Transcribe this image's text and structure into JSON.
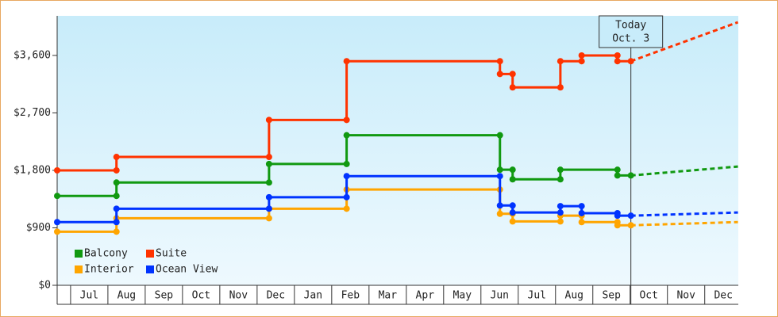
{
  "chart_data": {
    "type": "step",
    "xlim": [
      -0.36,
      17.9
    ],
    "ylim": [
      0,
      4220
    ],
    "xticks": [
      {
        "value": 0.5,
        "label": "Jul"
      },
      {
        "value": 1.5,
        "label": "Aug"
      },
      {
        "value": 2.5,
        "label": "Sep"
      },
      {
        "value": 3.5,
        "label": "Oct"
      },
      {
        "value": 4.5,
        "label": "Nov"
      },
      {
        "value": 5.5,
        "label": "Dec"
      },
      {
        "value": 6.5,
        "label": "Jan"
      },
      {
        "value": 7.5,
        "label": "Feb"
      },
      {
        "value": 8.5,
        "label": "Mar"
      },
      {
        "value": 9.5,
        "label": "Apr"
      },
      {
        "value": 10.5,
        "label": "May"
      },
      {
        "value": 11.5,
        "label": "Jun"
      },
      {
        "value": 12.5,
        "label": "Jul"
      },
      {
        "value": 13.5,
        "label": "Aug"
      },
      {
        "value": 14.5,
        "label": "Sep"
      },
      {
        "value": 15.5,
        "label": "Oct"
      },
      {
        "value": 16.5,
        "label": "Nov"
      },
      {
        "value": 17.5,
        "label": "Dec"
      }
    ],
    "yticks": [
      {
        "value": 0,
        "label": "$0"
      },
      {
        "value": 900,
        "label": "$900"
      },
      {
        "value": 1800,
        "label": "$1,800"
      },
      {
        "value": 2700,
        "label": "$2,700"
      },
      {
        "value": 3600,
        "label": "$3,600"
      }
    ],
    "annotation": {
      "lines": [
        "Today",
        "Oct. 3"
      ],
      "x": 15.02
    },
    "forecast_x": 17.89,
    "legend": "lower-left",
    "series": [
      {
        "name": "Balcony",
        "color": "#119911",
        "x": [
          -0.36,
          1.23,
          1.23,
          5.32,
          5.32,
          7.4,
          7.4,
          11.51,
          11.51,
          11.85,
          11.85,
          13.13,
          13.13,
          14.66,
          14.66,
          15.02
        ],
        "values": [
          1400,
          1400,
          1610,
          1610,
          1900,
          1900,
          2350,
          2350,
          1810,
          1810,
          1660,
          1660,
          1810,
          1810,
          1720,
          1720
        ],
        "forecast": 1860
      },
      {
        "name": "Suite",
        "color": "#ff3300",
        "x": [
          -0.36,
          1.23,
          1.23,
          5.32,
          5.32,
          7.4,
          7.4,
          11.51,
          11.51,
          11.85,
          11.85,
          13.13,
          13.13,
          13.7,
          13.7,
          14.66,
          14.66,
          15.02
        ],
        "values": [
          1800,
          1800,
          2010,
          2010,
          2590,
          2590,
          3510,
          3510,
          3310,
          3310,
          3100,
          3100,
          3510,
          3510,
          3600,
          3600,
          3510,
          3510
        ],
        "forecast": 4120
      },
      {
        "name": "Interior",
        "color": "#ffa500",
        "x": [
          -0.36,
          1.23,
          1.23,
          5.32,
          5.32,
          7.4,
          7.4,
          11.51,
          11.51,
          11.85,
          11.85,
          13.13,
          13.13,
          13.7,
          13.7,
          14.66,
          14.66,
          15.02
        ],
        "values": [
          840,
          840,
          1050,
          1050,
          1200,
          1200,
          1500,
          1500,
          1120,
          1120,
          1000,
          1000,
          1090,
          1090,
          990,
          990,
          940,
          940
        ],
        "forecast": 990
      },
      {
        "name": "Ocean View",
        "color": "#0033ff",
        "x": [
          -0.36,
          1.23,
          1.23,
          5.32,
          5.32,
          7.4,
          7.4,
          11.51,
          11.51,
          11.85,
          11.85,
          13.13,
          13.13,
          13.7,
          13.7,
          14.66,
          14.66,
          15.02
        ],
        "values": [
          990,
          990,
          1200,
          1200,
          1380,
          1380,
          1710,
          1710,
          1250,
          1250,
          1140,
          1140,
          1240,
          1240,
          1130,
          1130,
          1090,
          1090
        ],
        "forecast": 1140
      }
    ]
  }
}
